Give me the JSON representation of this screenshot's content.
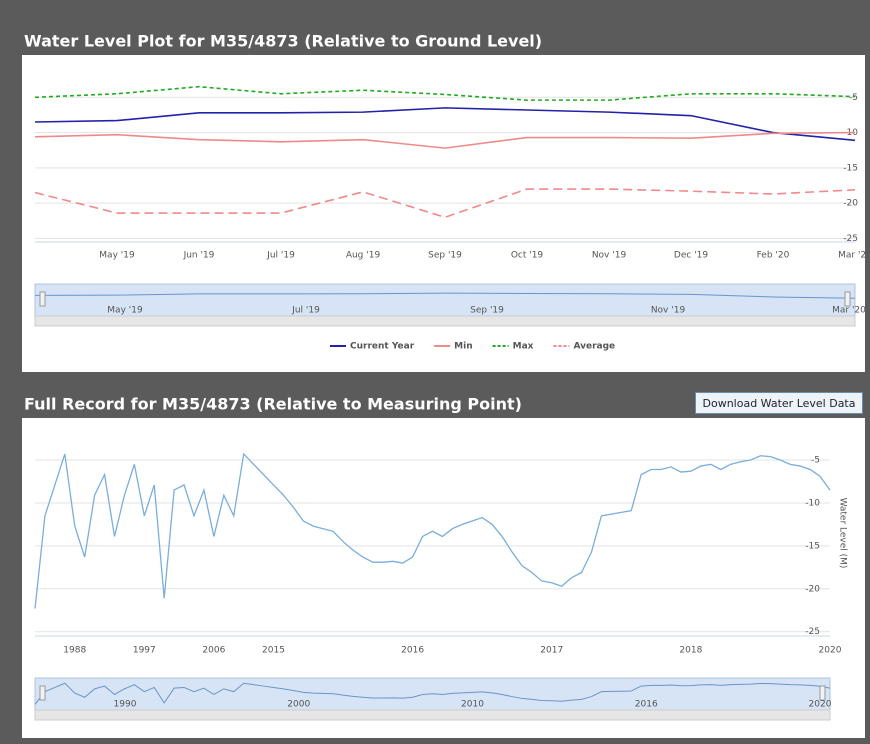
{
  "chart_data": [
    {
      "type": "line",
      "title": "Water Level Plot for M35/4873 (Relative to Ground Level)",
      "categories": [
        null,
        "May '19",
        "Jun '19",
        "Jul '19",
        "Aug '19",
        "Sep '19",
        "Oct '19",
        "Nov '19",
        "Dec '19",
        "Feb '20",
        "Mar '20"
      ],
      "series": [
        {
          "name": "Current Year",
          "color": "#2222aa",
          "dash": false,
          "values": [
            -8.5,
            -8.3,
            -7.2,
            -7.2,
            -7.1,
            -6.5,
            -6.8,
            -7.1,
            -7.6,
            -10,
            -11.1
          ]
        },
        {
          "name": "Min",
          "color": "#f08a8a",
          "dash": false,
          "values": [
            -10.6,
            -10.3,
            -11,
            -11.3,
            -11,
            -12.2,
            -10.7,
            -10.7,
            -10.8,
            -10.1,
            -10
          ]
        },
        {
          "name": "Max",
          "color": "#22aa22",
          "dash": true,
          "values": [
            -5,
            -4.5,
            -3.5,
            -4.5,
            -4,
            -4.6,
            -5.4,
            -5.4,
            -4.5,
            -4.5,
            -4.9
          ]
        },
        {
          "name": "Average",
          "color": "#f08a8a",
          "dash": true,
          "values": [
            -18.5,
            -21.4,
            -21.4,
            -21.4,
            -18.4,
            -22,
            -18,
            -18,
            -18.3,
            -18.7,
            -18.1
          ]
        }
      ],
      "ylim": [
        -25.5,
        0
      ],
      "yticks": [
        -5,
        -10,
        -15,
        -20,
        -25
      ],
      "grid": true,
      "legend": "bottom",
      "navigator_labels": [
        "May '19",
        "Jul '19",
        "Sep '19",
        "Nov '19",
        "Mar '20"
      ]
    },
    {
      "type": "line",
      "title": "Full Record for M35/4873 (Relative to Measuring Point)",
      "y_label": "Water Level (M)",
      "categories": [
        null,
        null,
        null,
        null,
        "1988",
        null,
        null,
        null,
        null,
        null,
        null,
        "1997",
        null,
        null,
        null,
        null,
        null,
        null,
        "2006",
        null,
        null,
        null,
        null,
        null,
        "2015",
        null,
        null,
        null,
        null,
        null,
        null,
        null,
        null,
        null,
        null,
        null,
        null,
        null,
        "2016",
        null,
        null,
        null,
        null,
        null,
        null,
        null,
        null,
        null,
        null,
        null,
        null,
        null,
        "2017",
        null,
        null,
        null,
        null,
        null,
        null,
        null,
        null,
        null,
        null,
        null,
        null,
        null,
        "2018",
        null,
        null,
        null,
        null,
        null,
        null,
        null,
        null,
        null,
        null,
        null,
        null,
        null,
        "2020"
      ],
      "series": [
        {
          "name": "Water Level",
          "color": "#7aaedc",
          "dash": false,
          "values": [
            -22.3,
            -11.5,
            -7.9,
            -4.3,
            -12.7,
            -16.3,
            -9.1,
            -6.7,
            -13.9,
            -9.1,
            -5.5,
            -11.5,
            -7.9,
            -21.1,
            -8.5,
            -7.9,
            -11.5,
            -8.5,
            -13.9,
            -9.1,
            -11.5,
            -4.3,
            -5.5,
            -6.7,
            -7.9,
            -9.1,
            -10.5,
            -12.1,
            -12.7,
            -13,
            -13.3,
            -14.5,
            -15.5,
            -16.3,
            -16.9,
            -16.9,
            -16.8,
            -17,
            -16.3,
            -13.9,
            -13.3,
            -13.9,
            -13,
            -12.5,
            -12.1,
            -11.7,
            -12.5,
            -13.9,
            -15.7,
            -17.3,
            -18.1,
            -19.1,
            -19.3,
            -19.7,
            -18.7,
            -18.1,
            -15.7,
            -11.5,
            -11.3,
            -11.1,
            -10.9,
            -6.7,
            -6.1,
            -6.1,
            -5.8,
            -6.4,
            -6.3,
            -5.7,
            -5.5,
            -6.1,
            -5.5,
            -5.2,
            -5,
            -4.5,
            -4.6,
            -5,
            -5.5,
            -5.7,
            -6.1,
            -6.9,
            -8.5
          ]
        }
      ],
      "ylim": [
        -25.5,
        -1.5
      ],
      "yticks": [
        -5,
        -10,
        -15,
        -20,
        -25
      ],
      "grid": true,
      "navigator_labels": [
        "1990",
        "2000",
        "2010",
        "2016",
        "2020"
      ],
      "button": "Download Water Level Data"
    }
  ]
}
